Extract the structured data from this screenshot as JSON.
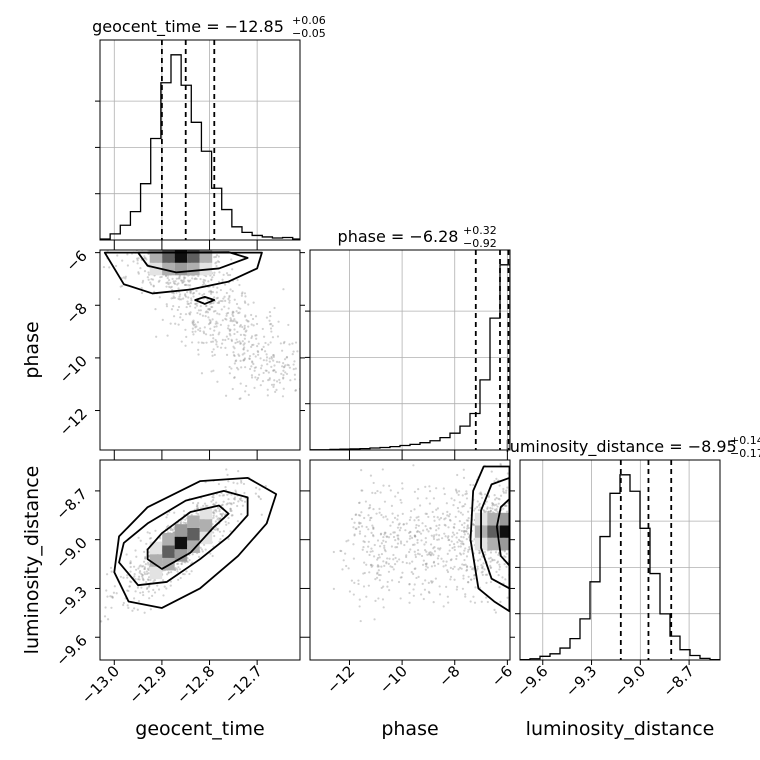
{
  "chart_data": {
    "type": "corner",
    "parameters": [
      "geocent_time",
      "phase",
      "luminosity_distance"
    ],
    "axes": {
      "geocent_time": {
        "label": "geocent_time",
        "range": [
          -13.03,
          -12.61
        ],
        "ticks": [
          -13.0,
          -12.9,
          -12.8,
          -12.7
        ],
        "tick_labels": [
          "−13.0",
          "−12.9",
          "−12.8",
          "−12.7"
        ]
      },
      "phase": {
        "label": "phase",
        "range": [
          -13.5,
          -5.9
        ],
        "ticks": [
          -12,
          -10,
          -8,
          -6
        ],
        "tick_labels": [
          "−12",
          "−10",
          "−8",
          "−6"
        ]
      },
      "luminosity_distance": {
        "label": "luminosity_distance",
        "range": [
          -9.74,
          -8.51
        ],
        "ticks": [
          -9.6,
          -9.3,
          -9.0,
          -8.7
        ],
        "tick_labels": [
          "−9.6",
          "−9.3",
          "−9.0",
          "−8.7"
        ]
      }
    },
    "titles": {
      "geocent_time": {
        "text": "geocent_time = −12.85",
        "sup": "+0.06",
        "sub": "−0.05"
      },
      "phase": {
        "text": "phase = −6.28",
        "sup": "+0.32",
        "sub": "−0.92"
      },
      "luminosity_distance": {
        "text": "luminosity_distance = −8.95",
        "sup": "+0.14",
        "sub": "−0.17"
      }
    },
    "marginals": {
      "geocent_time": {
        "bin_edges": [
          -13.03,
          -13.0087,
          -12.9874,
          -12.9661,
          -12.9448,
          -12.9235,
          -12.9022,
          -12.8809,
          -12.8596,
          -12.8383,
          -12.817,
          -12.7957,
          -12.7744,
          -12.7531,
          -12.7318,
          -12.7105,
          -12.6892,
          -12.6679,
          -12.6466,
          -12.6253,
          -12.604
        ],
        "counts": [
          2,
          12,
          29,
          56,
          111,
          200,
          310,
          365,
          305,
          232,
          175,
          102,
          60,
          26,
          15,
          9,
          6,
          4,
          5,
          2
        ],
        "quantiles": [
          -12.9,
          -12.85,
          -12.79
        ]
      },
      "phase": {
        "bin_edges": [
          -13.5,
          -13.12,
          -12.74,
          -12.36,
          -11.98,
          -11.6,
          -11.22,
          -10.84,
          -10.46,
          -10.08,
          -9.7,
          -9.32,
          -8.94,
          -8.56,
          -8.18,
          -7.8,
          -7.42,
          -7.04,
          -6.66,
          -6.28,
          -5.9
        ],
        "counts": [
          1,
          1,
          2,
          3,
          4,
          5,
          7,
          9,
          12,
          16,
          20,
          26,
          33,
          44,
          60,
          85,
          130,
          250,
          470,
          660
        ],
        "quantiles": [
          -7.2,
          -6.28,
          -5.96
        ]
      },
      "luminosity_distance": {
        "bin_edges": [
          -9.74,
          -9.6785,
          -9.617,
          -9.5555,
          -9.494,
          -9.4325,
          -9.371,
          -9.3095,
          -9.248,
          -9.1865,
          -9.125,
          -9.0635,
          -9.002,
          -8.9405,
          -8.879,
          -8.8175,
          -8.756,
          -8.6945,
          -8.633,
          -8.5715,
          -8.51
        ],
        "counts": [
          1,
          3,
          9,
          15,
          29,
          52,
          100,
          190,
          300,
          405,
          450,
          410,
          320,
          210,
          112,
          58,
          25,
          11,
          4,
          1
        ],
        "quantiles": [
          -9.12,
          -8.95,
          -8.81
        ]
      }
    },
    "joint": [
      {
        "x": "geocent_time",
        "y": "phase",
        "density_peak": [
          -12.86,
          -6.15
        ],
        "scatter_description_points": [
          [
            -12.98,
            -6.3
          ],
          [
            -12.95,
            -6.8
          ],
          [
            -12.9,
            -7.2
          ],
          [
            -12.85,
            -7.6
          ],
          [
            -12.8,
            -7.9
          ],
          [
            -12.76,
            -8.4
          ],
          [
            -12.72,
            -9.0
          ],
          [
            -12.68,
            -9.7
          ],
          [
            -12.65,
            -10.4
          ],
          [
            -12.62,
            -10.8
          ],
          [
            -12.7,
            -8.2
          ],
          [
            -12.9,
            -6.6
          ],
          [
            -12.8,
            -6.4
          ],
          [
            -12.75,
            -6.8
          ],
          [
            -12.72,
            -7.4
          ],
          [
            -12.66,
            -8.6
          ]
        ],
        "contours": [
          [
            [
              -12.95,
              -6.0
            ],
            [
              -12.93,
              -6.5
            ],
            [
              -12.87,
              -6.75
            ],
            [
              -12.78,
              -6.6
            ],
            [
              -12.72,
              -6.2
            ],
            [
              -12.76,
              -5.98
            ]
          ],
          [
            [
              -13.02,
              -6.0
            ],
            [
              -12.98,
              -7.2
            ],
            [
              -12.92,
              -7.55
            ],
            [
              -12.84,
              -7.4
            ],
            [
              -12.76,
              -7.1
            ],
            [
              -12.7,
              -6.6
            ],
            [
              -12.69,
              -6.0
            ]
          ],
          [
            [
              -12.83,
              -7.8
            ],
            [
              -12.81,
              -7.95
            ],
            [
              -12.79,
              -7.8
            ],
            [
              -12.81,
              -7.68
            ]
          ]
        ]
      },
      {
        "x": "geocent_time",
        "y": "luminosity_distance",
        "density_peak": [
          -12.86,
          -9.02
        ],
        "contours": [
          [
            [
              -12.93,
              -9.12
            ],
            [
              -12.9,
              -9.18
            ],
            [
              -12.84,
              -9.08
            ],
            [
              -12.79,
              -8.92
            ],
            [
              -12.76,
              -8.84
            ],
            [
              -12.78,
              -8.79
            ],
            [
              -12.84,
              -8.83
            ],
            [
              -12.9,
              -8.96
            ],
            [
              -12.93,
              -9.06
            ]
          ],
          [
            [
              -12.99,
              -9.14
            ],
            [
              -12.95,
              -9.28
            ],
            [
              -12.89,
              -9.26
            ],
            [
              -12.82,
              -9.12
            ],
            [
              -12.76,
              -8.98
            ],
            [
              -12.72,
              -8.85
            ],
            [
              -12.72,
              -8.74
            ],
            [
              -12.77,
              -8.7
            ],
            [
              -12.85,
              -8.76
            ],
            [
              -12.93,
              -8.9
            ],
            [
              -12.98,
              -9.02
            ]
          ],
          [
            [
              -13.0,
              -9.2
            ],
            [
              -12.97,
              -9.38
            ],
            [
              -12.9,
              -9.42
            ],
            [
              -12.82,
              -9.3
            ],
            [
              -12.74,
              -9.1
            ],
            [
              -12.68,
              -8.9
            ],
            [
              -12.66,
              -8.72
            ],
            [
              -12.72,
              -8.62
            ],
            [
              -12.82,
              -8.64
            ],
            [
              -12.93,
              -8.8
            ],
            [
              -12.99,
              -8.98
            ]
          ]
        ]
      },
      {
        "x": "phase",
        "y": "luminosity_distance",
        "density_peak": [
          -6.05,
          -8.95
        ],
        "contours": [
          [
            [
              -5.92,
              -8.75
            ],
            [
              -6.25,
              -8.8
            ],
            [
              -6.4,
              -8.92
            ],
            [
              -6.25,
              -9.1
            ],
            [
              -5.92,
              -9.16
            ]
          ],
          [
            [
              -5.92,
              -8.62
            ],
            [
              -6.6,
              -8.66
            ],
            [
              -7.0,
              -8.82
            ],
            [
              -7.0,
              -9.05
            ],
            [
              -6.6,
              -9.24
            ],
            [
              -5.92,
              -9.3
            ]
          ],
          [
            [
              -5.92,
              -8.55
            ],
            [
              -6.9,
              -8.55
            ],
            [
              -7.3,
              -8.7
            ],
            [
              -7.4,
              -9.0
            ],
            [
              -7.1,
              -9.3
            ],
            [
              -6.5,
              -9.38
            ],
            [
              -5.92,
              -9.44
            ]
          ]
        ]
      }
    ],
    "grid": true,
    "colors": {
      "line": "#000000",
      "scatter": "#9a9a9a",
      "grid": "#b0b0b0"
    }
  }
}
